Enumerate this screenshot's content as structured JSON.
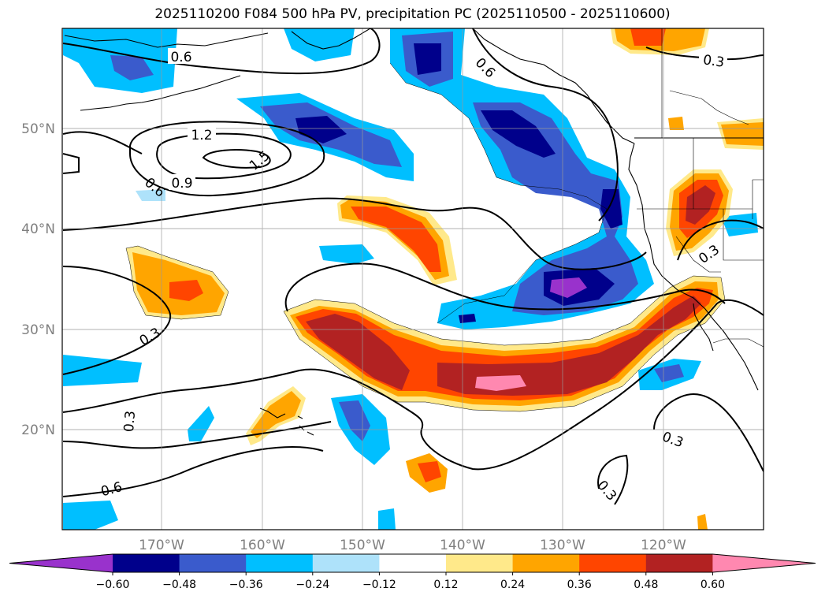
{
  "title": "2025110200 F084 500 hPa PV, precipitation PC (2025110500 - 2025110600)",
  "map": {
    "lat_labels": [
      "50°N",
      "40°N",
      "30°N",
      "20°N"
    ],
    "lon_labels": [
      "170°W",
      "160°W",
      "150°W",
      "140°W",
      "130°W",
      "120°W"
    ],
    "contour_labels": [
      "0.6",
      "0.6",
      "1.2",
      "1.5",
      "0.9",
      "0.6",
      "0.3",
      "0.3",
      "0.6",
      "0.3",
      "0.3",
      "0.3",
      "0.3"
    ]
  },
  "colorbar": {
    "ticks": [
      "−0.60",
      "−0.48",
      "−0.36",
      "−0.24",
      "−0.12",
      "0.12",
      "0.24",
      "0.36",
      "0.48",
      "0.60"
    ],
    "colors": [
      "#9932CC",
      "#00008B",
      "#3A5BCC",
      "#00BFFF",
      "#AEE2FA",
      "#FFFFFF",
      "#FFE98A",
      "#FFA500",
      "#FF4500",
      "#B22222",
      "#FF88B0",
      "#FF88B0"
    ]
  }
}
